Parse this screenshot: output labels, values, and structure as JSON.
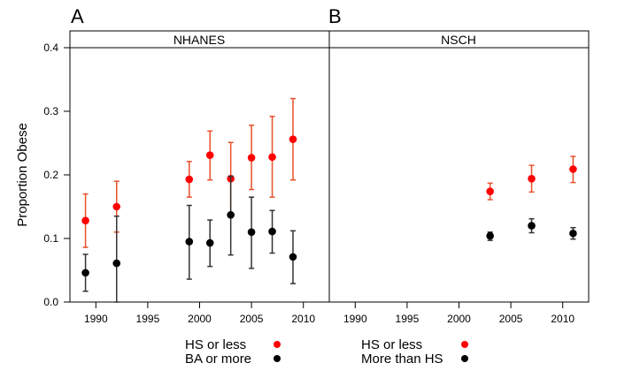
{
  "chart_data": [
    {
      "type": "scatter",
      "panel_label": "A",
      "strip_title": "NHANES",
      "ylabel": "Proportion Obese",
      "ylim": [
        0,
        0.4
      ],
      "yticks": [
        "0.0",
        "0.1",
        "0.2",
        "0.3",
        "0.4"
      ],
      "xlim": [
        1987.5,
        2012.5
      ],
      "xticks": [
        "1990",
        "1995",
        "2000",
        "2005",
        "2010"
      ],
      "legend_position": "bottom",
      "series": [
        {
          "name": "HS or less",
          "color": "#ff0000",
          "x": [
            1989,
            1992,
            1999,
            2001,
            2003,
            2005,
            2007,
            2009
          ],
          "y": [
            0.128,
            0.15,
            0.193,
            0.231,
            0.194,
            0.227,
            0.228,
            0.256
          ],
          "lower": [
            0.086,
            0.11,
            0.165,
            0.192,
            0.137,
            0.177,
            0.165,
            0.192
          ],
          "upper": [
            0.17,
            0.19,
            0.221,
            0.269,
            0.251,
            0.278,
            0.292,
            0.32
          ]
        },
        {
          "name": "BA or more",
          "color": "#000000",
          "x": [
            1989,
            1992,
            1999,
            2001,
            2003,
            2005,
            2007,
            2009
          ],
          "y": [
            0.046,
            0.061,
            0.095,
            0.093,
            0.137,
            0.11,
            0.111,
            0.071
          ],
          "lower": [
            0.017,
            0.0,
            0.036,
            0.056,
            0.074,
            0.053,
            0.077,
            0.029
          ],
          "upper": [
            0.075,
            0.135,
            0.152,
            0.129,
            0.198,
            0.165,
            0.144,
            0.112
          ]
        }
      ]
    },
    {
      "type": "scatter",
      "panel_label": "B",
      "strip_title": "NSCH",
      "ylim": [
        0,
        0.4
      ],
      "xlim": [
        1987.5,
        2012.5
      ],
      "xticks": [
        "1990",
        "1995",
        "2000",
        "2005",
        "2010"
      ],
      "legend_position": "bottom",
      "series": [
        {
          "name": "HS or less",
          "color": "#ff0000",
          "x": [
            2003,
            2007,
            2011
          ],
          "y": [
            0.174,
            0.194,
            0.209
          ],
          "lower": [
            0.161,
            0.173,
            0.188
          ],
          "upper": [
            0.187,
            0.215,
            0.229
          ]
        },
        {
          "name": "More than HS",
          "color": "#000000",
          "x": [
            2003,
            2007,
            2011
          ],
          "y": [
            0.104,
            0.12,
            0.108
          ],
          "lower": [
            0.097,
            0.109,
            0.099
          ],
          "upper": [
            0.11,
            0.131,
            0.117
          ]
        }
      ]
    }
  ]
}
